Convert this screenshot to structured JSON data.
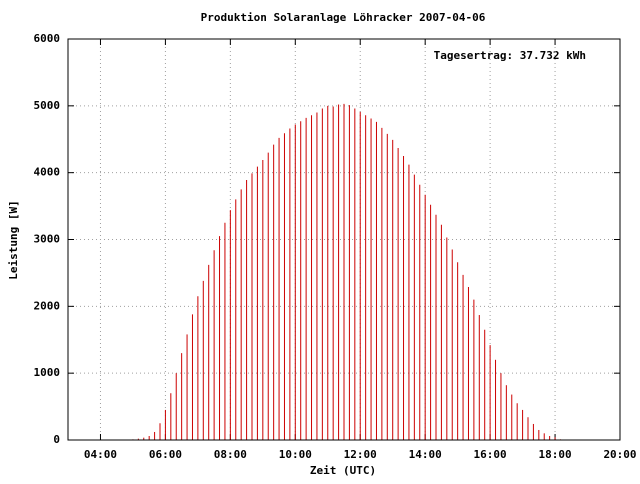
{
  "chart_data": {
    "type": "impulse",
    "title": "Produktion Solaranlage Löhracker 2007-04-06",
    "x_label": "Zeit (UTC)",
    "y_label": "Leistung [W]",
    "annotation": "Tagesertrag: 37.732 kWh",
    "color": "#cc0000",
    "grid": true,
    "xlim": [
      "03:00",
      "20:00"
    ],
    "ylim": [
      0,
      6000
    ],
    "xticks": [
      "04:00",
      "06:00",
      "08:00",
      "10:00",
      "12:00",
      "14:00",
      "16:00",
      "18:00",
      "20:00"
    ],
    "yticks": [
      0,
      1000,
      2000,
      3000,
      4000,
      5000,
      6000
    ],
    "x": [
      "05:00",
      "05:10",
      "05:20",
      "05:30",
      "05:40",
      "05:50",
      "06:00",
      "06:10",
      "06:20",
      "06:30",
      "06:40",
      "06:50",
      "07:00",
      "07:10",
      "07:20",
      "07:30",
      "07:40",
      "07:50",
      "08:00",
      "08:10",
      "08:20",
      "08:30",
      "08:40",
      "08:50",
      "09:00",
      "09:10",
      "09:20",
      "09:30",
      "09:40",
      "09:50",
      "10:00",
      "10:10",
      "10:20",
      "10:30",
      "10:40",
      "10:50",
      "11:00",
      "11:10",
      "11:20",
      "11:30",
      "11:40",
      "11:50",
      "12:00",
      "12:10",
      "12:20",
      "12:30",
      "12:40",
      "12:50",
      "13:00",
      "13:10",
      "13:20",
      "13:30",
      "13:40",
      "13:50",
      "14:00",
      "14:10",
      "14:20",
      "14:30",
      "14:40",
      "14:50",
      "15:00",
      "15:10",
      "15:20",
      "15:30",
      "15:40",
      "15:50",
      "16:00",
      "16:10",
      "16:20",
      "16:30",
      "16:40",
      "16:50",
      "17:00",
      "17:10",
      "17:20",
      "17:30",
      "17:40",
      "17:50",
      "18:00",
      "18:10"
    ],
    "values": [
      10,
      20,
      35,
      60,
      120,
      250,
      450,
      700,
      1000,
      1300,
      1580,
      1880,
      2150,
      2380,
      2620,
      2840,
      3050,
      3250,
      3440,
      3600,
      3750,
      3890,
      3990,
      4090,
      4190,
      4300,
      4420,
      4520,
      4590,
      4660,
      4720,
      4770,
      4820,
      4860,
      4900,
      4960,
      5000,
      4990,
      5020,
      5030,
      5010,
      4960,
      4910,
      4860,
      4810,
      4760,
      4670,
      4580,
      4490,
      4370,
      4250,
      4120,
      3970,
      3820,
      3670,
      3520,
      3370,
      3220,
      3030,
      2850,
      2660,
      2470,
      2290,
      2100,
      1870,
      1650,
      1420,
      1200,
      1000,
      820,
      680,
      550,
      450,
      340,
      240,
      150,
      100,
      60,
      40,
      10
    ]
  }
}
